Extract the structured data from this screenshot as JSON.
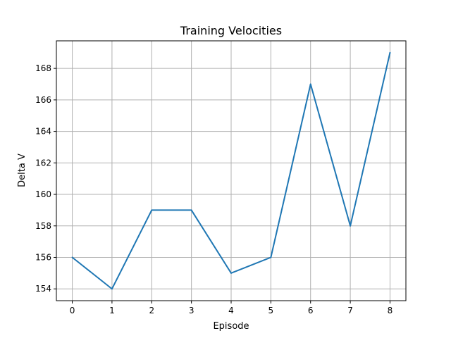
{
  "chart_data": {
    "type": "line",
    "title": "Training Velocities",
    "xlabel": "Episode",
    "ylabel": "Delta V",
    "x": [
      0,
      1,
      2,
      3,
      4,
      5,
      6,
      7,
      8
    ],
    "series": [
      {
        "values": [
          156,
          154,
          159,
          159,
          155,
          156,
          167,
          158,
          169
        ]
      }
    ],
    "xticks": [
      0,
      1,
      2,
      3,
      4,
      5,
      6,
      7,
      8
    ],
    "yticks": [
      154,
      156,
      158,
      160,
      162,
      164,
      166,
      168
    ],
    "xlim": [
      -0.4,
      8.4
    ],
    "ylim": [
      153.25,
      169.75
    ],
    "grid": true,
    "line_color": "#1f77b4"
  }
}
